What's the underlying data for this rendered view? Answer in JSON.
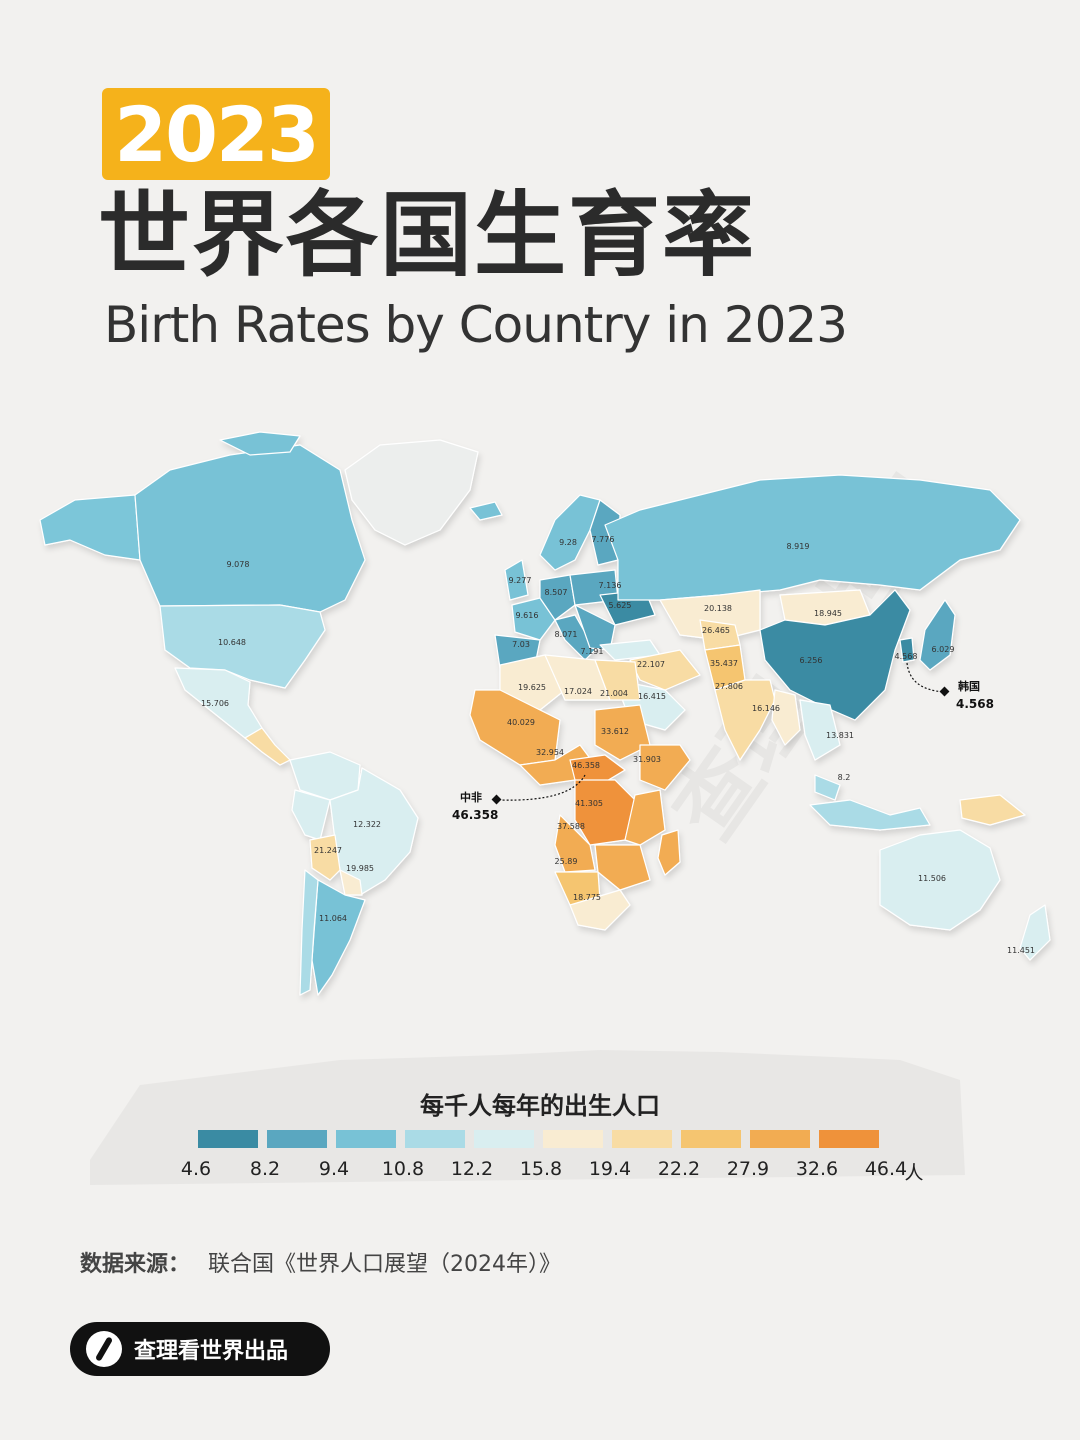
{
  "header": {
    "year_badge": "2023",
    "title_cn": "世界各国生育率",
    "title_en": "Birth Rates by Country in 2023"
  },
  "map": {
    "region_values": [
      {
        "region": "canada",
        "value": "9.078"
      },
      {
        "region": "usa",
        "value": "10.648"
      },
      {
        "region": "mexico",
        "value": "15.706"
      },
      {
        "region": "brazil",
        "value": "12.322"
      },
      {
        "region": "bolivia",
        "value": "21.247"
      },
      {
        "region": "paraguay",
        "value": "19.985"
      },
      {
        "region": "argentina",
        "value": "11.064"
      },
      {
        "region": "norway",
        "value": "9.28"
      },
      {
        "region": "finland",
        "value": "7.776"
      },
      {
        "region": "uk",
        "value": "9.277"
      },
      {
        "region": "germany",
        "value": "8.507"
      },
      {
        "region": "poland",
        "value": "7.136"
      },
      {
        "region": "france",
        "value": "9.616"
      },
      {
        "region": "ukraine",
        "value": "5.625"
      },
      {
        "region": "italy",
        "value": "8.071"
      },
      {
        "region": "spain",
        "value": "7.03"
      },
      {
        "region": "greece",
        "value": "7.191"
      },
      {
        "region": "russia",
        "value": "8.919"
      },
      {
        "region": "kazakhstan",
        "value": "20.138"
      },
      {
        "region": "mongolia",
        "value": "18.945"
      },
      {
        "region": "afghanistan",
        "value": "26.465"
      },
      {
        "region": "iraq",
        "value": "22.107"
      },
      {
        "region": "pakistan",
        "value": "35.437"
      },
      {
        "region": "india",
        "value": "27.806"
      },
      {
        "region": "china",
        "value": "6.256"
      },
      {
        "region": "korea",
        "value": "4.568"
      },
      {
        "region": "japan",
        "value": "6.029"
      },
      {
        "region": "myanmar",
        "value": "16.146"
      },
      {
        "region": "laos",
        "value": "13.831"
      },
      {
        "region": "indonesia",
        "value": "8.2"
      },
      {
        "region": "saudi",
        "value": "16.415"
      },
      {
        "region": "egypt",
        "value": "21.004"
      },
      {
        "region": "libya",
        "value": "17.024"
      },
      {
        "region": "algeria",
        "value": "19.625"
      },
      {
        "region": "mali",
        "value": "40.029"
      },
      {
        "region": "nigeria",
        "value": "32.954"
      },
      {
        "region": "sudan",
        "value": "33.612"
      },
      {
        "region": "car",
        "value": "46.358"
      },
      {
        "region": "ethiopia",
        "value": "31.903"
      },
      {
        "region": "drc",
        "value": "41.305"
      },
      {
        "region": "angola",
        "value": "37.588"
      },
      {
        "region": "namibia",
        "value": "25.89"
      },
      {
        "region": "southafrica",
        "value": "18.775"
      },
      {
        "region": "australia",
        "value": "11.506"
      },
      {
        "region": "newzealand",
        "value": "11.451"
      }
    ],
    "callouts": [
      {
        "name": "韩国",
        "value": "4.568"
      },
      {
        "name": "中非",
        "value": "46.358"
      }
    ],
    "watermark": "查理看世界"
  },
  "legend": {
    "title": "每千人每年的出生人口",
    "colors": [
      "#3a8ba3",
      "#5aa7c0",
      "#78c2d6",
      "#aadbe6",
      "#d9eef0",
      "#f9ecd2",
      "#f8dca4",
      "#f5c570",
      "#f2ac52",
      "#ef923a"
    ],
    "breaks": [
      "4.6",
      "8.2",
      "9.4",
      "10.8",
      "12.2",
      "15.8",
      "19.4",
      "22.2",
      "27.9",
      "32.6",
      "46.4"
    ],
    "unit": "人"
  },
  "footer": {
    "source_label": "数据来源：",
    "source_text": "联合国《世界人口展望（2024年）》",
    "brand": "查理看世界出品"
  }
}
